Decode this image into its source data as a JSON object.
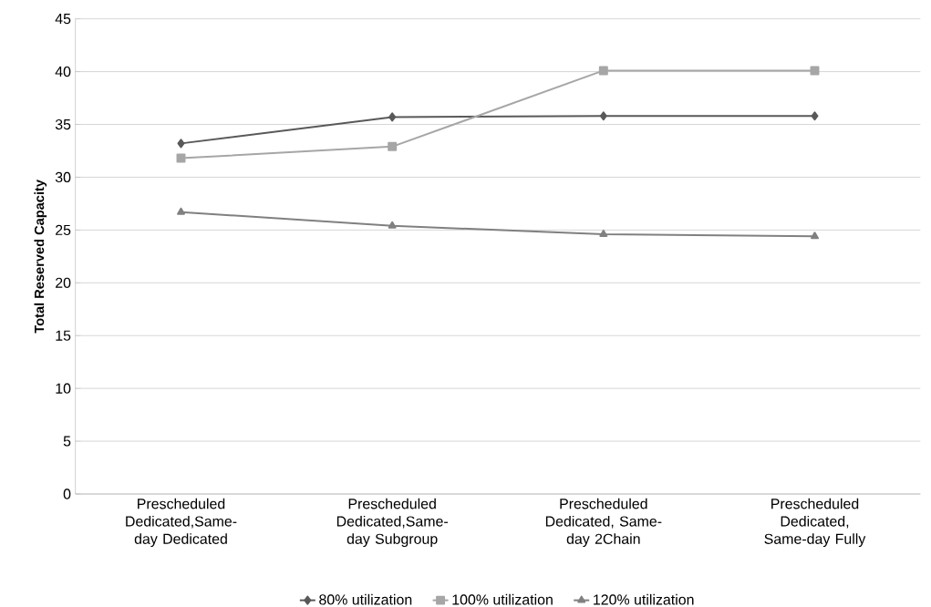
{
  "chart_data": {
    "type": "line",
    "ylabel": "Total Reserved Capacity",
    "categories": [
      "Prescheduled Dedicated,Same-day Dedicated",
      "Prescheduled Dedicated,Same-day Subgroup",
      "Prescheduled Dedicated, Same-day 2Chain",
      "Prescheduled Dedicated, Same-day Fully"
    ],
    "series": [
      {
        "name": "80% utilization",
        "color": "#595959",
        "marker": "diamond",
        "values": [
          33.2,
          35.7,
          35.8,
          35.8
        ]
      },
      {
        "name": "100% utilization",
        "color": "#a6a6a6",
        "marker": "square",
        "values": [
          31.8,
          32.9,
          40.1,
          40.1
        ]
      },
      {
        "name": "120% utilization",
        "color": "#808080",
        "marker": "triangle",
        "values": [
          26.7,
          25.4,
          24.6,
          24.4
        ]
      }
    ],
    "ylim": [
      0,
      45
    ],
    "yticks": [
      0,
      5,
      10,
      15,
      20,
      25,
      30,
      35,
      40,
      45
    ],
    "grid": "y",
    "legend": "bottom",
    "line_style": "solid"
  }
}
